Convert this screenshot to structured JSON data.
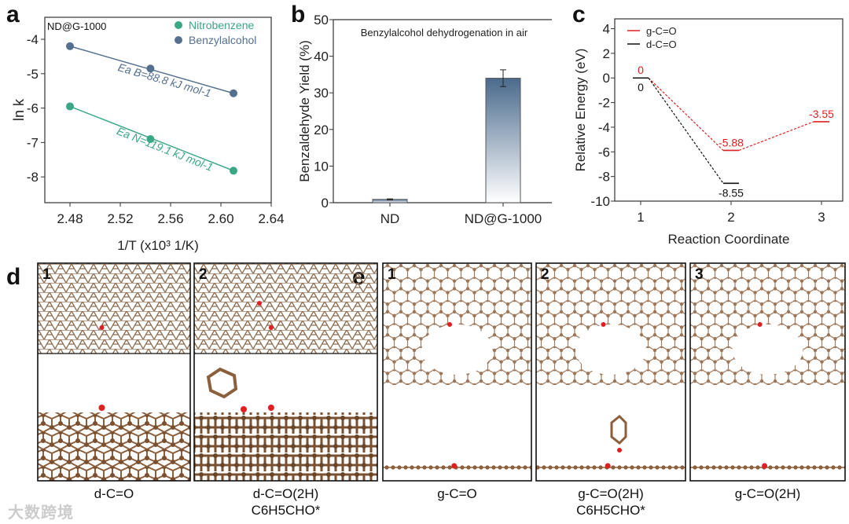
{
  "panels": {
    "a": "a",
    "b": "b",
    "c": "c",
    "d": "d",
    "e": "e"
  },
  "chart_data": [
    {
      "type": "scatter",
      "panel": "a",
      "annotation": "ND@G-1000",
      "xlabel": "1/T (x10³ 1/K)",
      "ylabel": "ln k",
      "xlim": [
        2.46,
        2.64
      ],
      "ylim": [
        -8.75,
        -3.36
      ],
      "xticks": [
        2.48,
        2.52,
        2.56,
        2.6,
        2.64
      ],
      "xtick_labels": [
        "2.48",
        "2.52",
        "2.56",
        "2.60",
        "2.64"
      ],
      "yticks": [
        -4,
        -5,
        -6,
        -7,
        -8
      ],
      "ytick_labels": [
        "-4",
        "-5",
        "-6",
        "-7",
        "-8"
      ],
      "legend": "top-right",
      "series": [
        {
          "name": "Nitrobenzene",
          "color": "#3aa882",
          "x": [
            2.48,
            2.544,
            2.61
          ],
          "y": [
            -5.95,
            -6.9,
            -7.82
          ],
          "fit_label": "Ea N=119.1 kJ mol-1"
        },
        {
          "name": "Benzylalcohol",
          "color": "#55708f",
          "x": [
            2.48,
            2.544,
            2.61
          ],
          "y": [
            -4.2,
            -4.85,
            -5.57
          ],
          "fit_label": "Ea B=88.8 kJ mol-1"
        }
      ]
    },
    {
      "type": "bar",
      "panel": "b",
      "title": "Benzylalcohol dehydrogenation in air",
      "ylabel": "Benzaldehyde Yield (%)",
      "ylim": [
        0,
        50
      ],
      "yticks": [
        0,
        10,
        20,
        30,
        40,
        50
      ],
      "ytick_labels": [
        "0",
        "10",
        "20",
        "30",
        "40",
        "50"
      ],
      "categories": [
        "ND",
        "ND@G-1000"
      ],
      "values": [
        0.9,
        34.0
      ],
      "errors": [
        0.15,
        2.3
      ],
      "color": "#4a6a8c"
    },
    {
      "type": "line",
      "panel": "c",
      "xlabel": "Reaction Coordinate",
      "ylabel": "Relative Energy (eV)",
      "xlim": [
        0.9,
        3.25
      ],
      "ylim": [
        -10,
        4.8
      ],
      "xticks": [
        1,
        2,
        3
      ],
      "xtick_labels": [
        "1",
        "2",
        "3"
      ],
      "yticks": [
        4,
        2,
        0,
        -2,
        -4,
        -6,
        -8,
        -10
      ],
      "ytick_labels": [
        "4",
        "2",
        "0",
        "-2",
        "-4",
        "-6",
        "-8",
        "-10"
      ],
      "legend": "top-left",
      "series": [
        {
          "name": "g-C=O",
          "color": "#e02020",
          "x": [
            1,
            2,
            3
          ],
          "y": [
            0,
            -5.88,
            -3.55
          ],
          "labels": [
            "0",
            "-5.88",
            "-3.55"
          ]
        },
        {
          "name": "d-C=O",
          "color": "#111111",
          "x": [
            1,
            2
          ],
          "y": [
            0,
            -8.55
          ],
          "labels": [
            "0",
            "-8.55"
          ]
        }
      ]
    }
  ],
  "structures": {
    "d": [
      {
        "num": "1",
        "caption": "d-C=O",
        "caption2": ""
      },
      {
        "num": "2",
        "caption": "d-C=O(2H)",
        "caption2": "C6H5CHO*"
      }
    ],
    "e": [
      {
        "num": "1",
        "caption": "g-C=O",
        "caption2": ""
      },
      {
        "num": "2",
        "caption": "g-C=O(2H)",
        "caption2": "C6H5CHO*"
      },
      {
        "num": "3",
        "caption": "g-C=O(2H)",
        "caption2": ""
      }
    ]
  },
  "watermark": "大数跨境"
}
